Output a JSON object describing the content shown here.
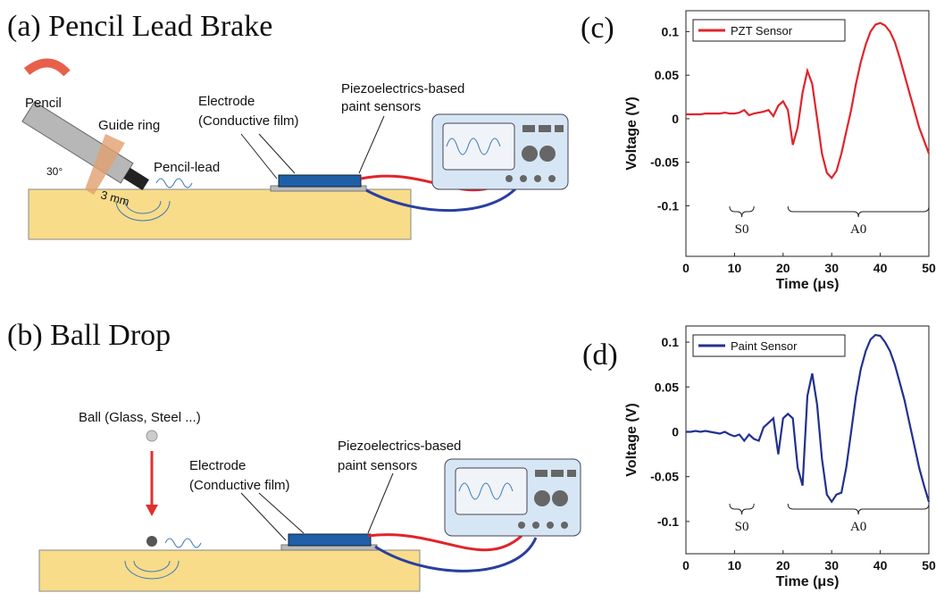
{
  "diagrams": [
    {
      "title": "(a) Pencil Lead Brake",
      "labels": {
        "pencil": "Pencil",
        "guide_ring": "Guide ring",
        "angle": "30°",
        "pencil_lead": "Pencil-lead",
        "distance": "3 mm",
        "electrode": [
          "Electrode",
          "(Conductive film)"
        ],
        "sensor": [
          "Piezoelectrics-based",
          "paint sensors"
        ]
      }
    },
    {
      "title": "(b) Ball Drop",
      "labels": {
        "ball": "Ball (Glass, Steel ...)",
        "electrode": [
          "Electrode",
          "(Conductive film)"
        ],
        "sensor": [
          "Piezoelectrics-based",
          "paint sensors"
        ]
      }
    }
  ],
  "chart_data": [
    {
      "type": "line",
      "panel_label": "(c)",
      "xlabel": "Time (μs)",
      "ylabel": "Voltage (V)",
      "legend": "upper left",
      "x": [
        0,
        1,
        2,
        3,
        4,
        5,
        6,
        7,
        8,
        9,
        10,
        11,
        12,
        13,
        14,
        15,
        16,
        17,
        18,
        19,
        20,
        21,
        22,
        23,
        24,
        25,
        26,
        27,
        28,
        29,
        30,
        31,
        32,
        33,
        34,
        35,
        36,
        37,
        38,
        39,
        40,
        41,
        42,
        43,
        44,
        45,
        46,
        47,
        48,
        49,
        50
      ],
      "series": [
        {
          "name": "PZT Sensor",
          "color": "#e0242b",
          "values": [
            0.005,
            0.005,
            0.005,
            0.005,
            0.006,
            0.006,
            0.006,
            0.006,
            0.007,
            0.006,
            0.006,
            0.007,
            0.01,
            0.004,
            0.006,
            0.007,
            0.008,
            0.01,
            0.003,
            0.015,
            0.02,
            0.01,
            -0.03,
            -0.01,
            0.03,
            0.055,
            0.04,
            0.0,
            -0.04,
            -0.062,
            -0.068,
            -0.06,
            -0.04,
            -0.015,
            0.01,
            0.04,
            0.065,
            0.085,
            0.1,
            0.108,
            0.11,
            0.107,
            0.1,
            0.088,
            0.07,
            0.05,
            0.03,
            0.01,
            -0.01,
            -0.025,
            -0.04
          ]
        }
      ],
      "xlim": [
        0,
        50
      ],
      "xticks": [
        0,
        10,
        20,
        30,
        40,
        50
      ],
      "ylim": [
        -0.158,
        0.124
      ],
      "yticks": [
        -0.1,
        -0.05,
        0,
        0.05,
        0.1
      ],
      "annotations": [
        "S0",
        "A0"
      ]
    },
    {
      "type": "line",
      "panel_label": "(d)",
      "xlabel": "Time (μs)",
      "ylabel": "Voltage (V)",
      "legend": "upper left",
      "x": [
        0,
        1,
        2,
        3,
        4,
        5,
        6,
        7,
        8,
        9,
        10,
        11,
        12,
        13,
        14,
        15,
        16,
        17,
        18,
        19,
        20,
        21,
        22,
        23,
        24,
        25,
        26,
        27,
        28,
        29,
        30,
        31,
        32,
        33,
        34,
        35,
        36,
        37,
        38,
        39,
        40,
        41,
        42,
        43,
        44,
        45,
        46,
        47,
        48,
        49,
        50
      ],
      "series": [
        {
          "name": "Paint Sensor",
          "color": "#22318e",
          "values": [
            0,
            0,
            0.001,
            0,
            0.001,
            0,
            -0.001,
            -0.002,
            0,
            -0.003,
            -0.005,
            -0.003,
            -0.01,
            -0.003,
            -0.008,
            -0.01,
            0.005,
            0.01,
            0.015,
            -0.025,
            0.015,
            0.02,
            0.015,
            -0.04,
            -0.06,
            0.04,
            0.065,
            0.03,
            -0.03,
            -0.07,
            -0.078,
            -0.07,
            -0.068,
            -0.04,
            0.0,
            0.04,
            0.07,
            0.09,
            0.103,
            0.108,
            0.107,
            0.1,
            0.09,
            0.075,
            0.055,
            0.035,
            0.01,
            -0.015,
            -0.04,
            -0.06,
            -0.078
          ]
        }
      ],
      "xlim": [
        0,
        50
      ],
      "xticks": [
        0,
        10,
        20,
        30,
        40,
        50
      ],
      "ylim": [
        -0.136,
        0.118
      ],
      "yticks": [
        -0.1,
        -0.05,
        0,
        0.05,
        0.1
      ],
      "annotations": [
        "S0",
        "A0"
      ]
    }
  ]
}
